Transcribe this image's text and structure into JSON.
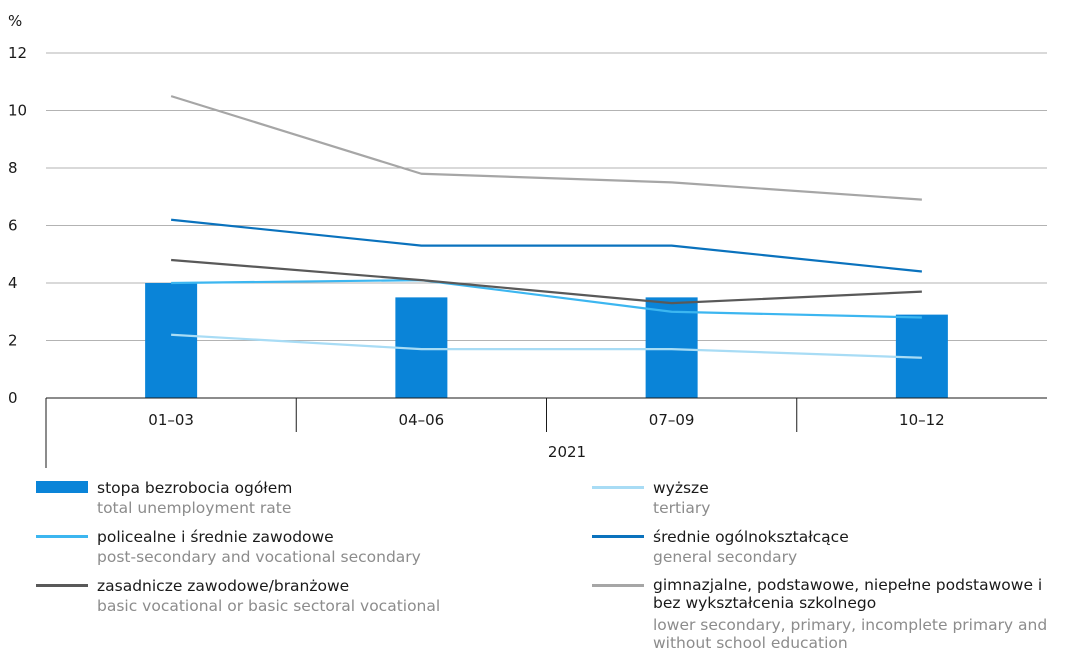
{
  "chart_data": {
    "type": "bar",
    "y_unit": "%",
    "ylim": [
      0,
      12
    ],
    "yticks": [
      0,
      2,
      4,
      6,
      8,
      10,
      12
    ],
    "grid": true,
    "categories": [
      "01–03",
      "04–06",
      "07–09",
      "10–12"
    ],
    "group_label": "2021",
    "series": [
      {
        "key": "total",
        "kind": "bar",
        "color": "#0a84d8",
        "values": [
          4.0,
          3.5,
          3.5,
          2.9
        ]
      },
      {
        "key": "tertiary",
        "kind": "line",
        "color": "#a8dcf5",
        "values": [
          2.2,
          1.7,
          1.7,
          1.4
        ]
      },
      {
        "key": "post_secondary",
        "kind": "line",
        "color": "#3cb6f0",
        "values": [
          4.0,
          4.1,
          3.0,
          2.8
        ]
      },
      {
        "key": "general_secondary",
        "kind": "line",
        "color": "#0a72bd",
        "values": [
          6.2,
          5.3,
          5.3,
          4.4
        ]
      },
      {
        "key": "basic_vocational",
        "kind": "line",
        "color": "#595959",
        "values": [
          4.8,
          4.1,
          3.3,
          3.7
        ]
      },
      {
        "key": "lower_secondary",
        "kind": "line",
        "color": "#a6a6a6",
        "values": [
          10.5,
          7.8,
          7.5,
          6.9
        ]
      }
    ]
  },
  "legend": {
    "items": [
      {
        "key": "total",
        "pl": "stopa bezrobocia ogółem",
        "en": "total unemployment rate"
      },
      {
        "key": "tertiary",
        "pl": "wyższe",
        "en": "tertiary"
      },
      {
        "key": "post_secondary",
        "pl": "policealne i średnie zawodowe",
        "en": "post-secondary and vocational secondary"
      },
      {
        "key": "general_secondary",
        "pl": "średnie ogólnokształcące",
        "en": "general secondary"
      },
      {
        "key": "basic_vocational",
        "pl": "zasadnicze zawodowe/branżowe",
        "en": "basic vocational or basic sectoral vocational"
      },
      {
        "key": "lower_secondary",
        "pl": "gimnazjalne, podstawowe, niepełne podstawowe i bez wykształcenia szkolnego",
        "en": "lower secondary, primary, incomplete primary and without school education"
      }
    ]
  }
}
